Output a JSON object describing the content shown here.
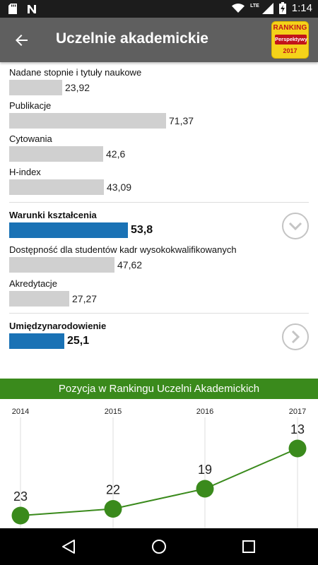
{
  "status": {
    "time": "1:14",
    "network": "LTE"
  },
  "header": {
    "title": "Uczelnie akademickie",
    "badge": {
      "line1": "RANKING",
      "line2": "Perspektywy",
      "line3": "2017"
    }
  },
  "metrics": [
    {
      "label": "Nadane stopnie i tytuły naukowe",
      "value": "23,92",
      "score": 23.92
    },
    {
      "label": "Publikacje",
      "value": "71,37",
      "score": 71.37
    },
    {
      "label": "Cytowania",
      "value": "42,6",
      "score": 42.6
    },
    {
      "label": "H-index",
      "value": "43,09",
      "score": 43.09
    }
  ],
  "warunki": {
    "label": "Warunki kształcenia",
    "value": "53,8",
    "score": 53.8
  },
  "warunki_sub": [
    {
      "label": "Dostępność dla studentów kadr wysokokwalifikowanych",
      "value": "47,62",
      "score": 47.62
    },
    {
      "label": "Akredytacje",
      "value": "27,27",
      "score": 27.27
    }
  ],
  "umiedzy": {
    "label": "Umiędzynarodowienie",
    "value": "25,1",
    "score": 25.1
  },
  "ranking": {
    "title": "Pozycja w Rankingu Uczelni Akademickich",
    "chart_data": {
      "type": "line",
      "x": [
        "2014",
        "2015",
        "2016",
        "2017"
      ],
      "values": [
        23,
        22,
        19,
        13
      ],
      "color": "#3a8a1c"
    }
  }
}
